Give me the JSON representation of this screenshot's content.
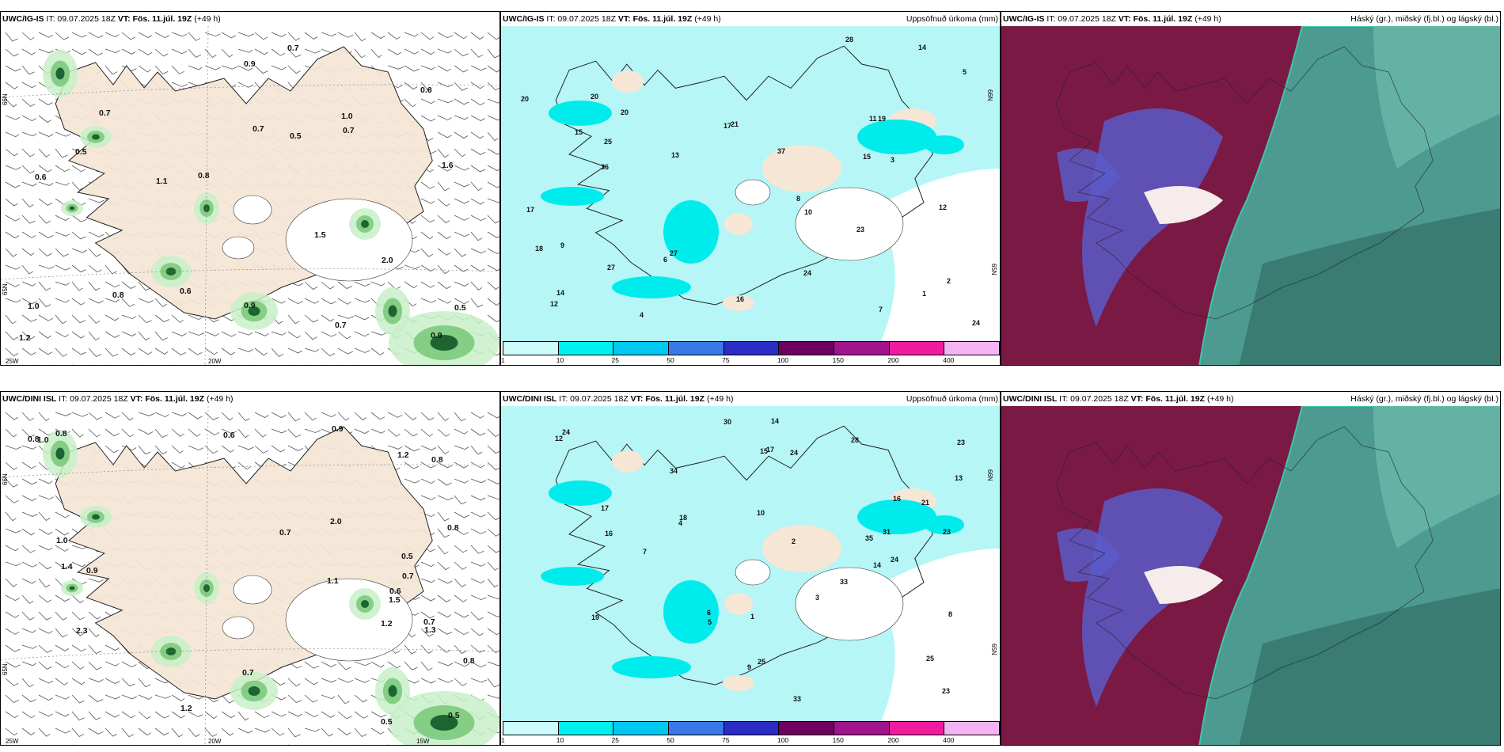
{
  "panels": [
    {
      "model": "UWC/IG-IS",
      "init": " IT: 09.07.2025 18Z ",
      "vt_label": "VT:",
      "vt": " Fös. 11.júl. 19Z",
      "lead": " (+49 h)",
      "right": "",
      "type": "wind",
      "grid": {
        "lon": [
          "25W",
          "20W"
        ],
        "lat": [
          "65N",
          "66N"
        ]
      },
      "values": [
        "0.6",
        "0.9",
        "0.7",
        "0.6",
        "0.7",
        "1.5",
        "0.5",
        "0.9",
        "0.8",
        "0.5",
        "0.7",
        "0.5",
        "0.7",
        "1.0",
        "0.9",
        "0.6",
        "0.7",
        "0.8",
        "1.1",
        "1.0",
        "1.2",
        "2.0",
        "1.6"
      ]
    },
    {
      "model": "UWC/IG-IS",
      "init": " IT: 09.07.2025 18Z ",
      "vt_label": "VT:",
      "vt": " Fös. 11.júl. 19Z",
      "lead": " (+49 h)",
      "right": "Uppsöfnuð úrkoma (mm)",
      "type": "precip",
      "grid": {
        "lon": [],
        "lat": [
          "65N",
          "66N"
        ]
      },
      "values": [
        "25",
        "18",
        "24",
        "36",
        "37",
        "27",
        "15",
        "17",
        "20",
        "12",
        "14",
        "23",
        "28",
        "27",
        "16",
        "15",
        "20",
        "24",
        "14",
        "17",
        "21",
        "19",
        "13",
        "20",
        "4",
        "5",
        "8",
        "10",
        "12",
        "11",
        "7",
        "9",
        "3",
        "6",
        "2",
        "1"
      ]
    },
    {
      "model": "UWC/IG-IS",
      "init": " IT: 09.07.2025 18Z ",
      "vt_label": "VT:",
      "vt": " Fös. 11.júl. 19Z",
      "lead": " (+49 h)",
      "right": "Háský (gr.), miðský (fj.bl.) og lágský (bl.)",
      "type": "cloud",
      "grid": {
        "lon": [],
        "lat": []
      },
      "values": []
    },
    {
      "model": "UWC/DINI ISL",
      "init": " IT: 09.07.2025 18Z ",
      "vt_label": "VT:",
      "vt": " Fös. 11.júl. 19Z",
      "lead": " (+49 h)",
      "right": "",
      "type": "wind",
      "grid": {
        "lon": [
          "25W",
          "20W",
          "15W"
        ],
        "lat": [
          "65N",
          "66N"
        ]
      },
      "values": [
        "0.8",
        "0.9",
        "0.7",
        "1.3",
        "0.9",
        "1.2",
        "0.6",
        "0.5",
        "0.8",
        "0.8",
        "0.7",
        "0.5",
        "1.0",
        "1.2",
        "0.5",
        "0.8",
        "1.4",
        "1.1",
        "0.6",
        "0.7",
        "1.0",
        "2.3",
        "0.8",
        "0.7",
        "1.2",
        "2.0",
        "1.5"
      ]
    },
    {
      "model": "UWC/DINI ISL",
      "init": " IT: 09.07.2025 18Z ",
      "vt_label": "VT:",
      "vt": " Fös. 11.júl. 19Z",
      "lead": " (+49 h)",
      "right": "Uppsöfnuð úrkoma (mm)",
      "type": "precip",
      "grid": {
        "lon": [],
        "lat": [
          "65N",
          "66N"
        ]
      },
      "values": [
        "24",
        "21",
        "23",
        "14",
        "17",
        "35",
        "33",
        "23",
        "30",
        "23",
        "12",
        "16",
        "19",
        "33",
        "25",
        "28",
        "24",
        "17",
        "16",
        "25",
        "34",
        "18",
        "31",
        "24",
        "13",
        "14",
        "15",
        "10",
        "6",
        "8",
        "5",
        "4",
        "3",
        "2",
        "7",
        "9",
        "1"
      ]
    },
    {
      "model": "UWC/DINI ISL",
      "init": " IT: 09.07.2025 18Z ",
      "vt_label": "VT:",
      "vt": " Fös. 11.júl. 19Z",
      "lead": " (+49 h)",
      "right": "Háský (gr.), miðský (fj.bl.) og lágský (bl.)",
      "type": "cloud",
      "grid": {
        "lon": [],
        "lat": []
      },
      "values": []
    }
  ],
  "legend": {
    "colors": [
      "#ccfcfc",
      "#00f0f0",
      "#00c8f0",
      "#3a78e8",
      "#2a2cc4",
      "#6e0060",
      "#a0148c",
      "#f01ca0",
      "#f4b4f4"
    ],
    "labels": [
      "1",
      "10",
      "25",
      "50",
      "75",
      "100",
      "150",
      "200",
      "400"
    ]
  },
  "colors": {
    "land": "#f5e6d6",
    "sea": "#ffffff",
    "light_green": "#c8f0c8",
    "mid_green": "#78c878",
    "dark_green": "#1e6432",
    "cyan_light": "#b6f6f6",
    "cyan": "#00ecec",
    "cloud_high": "#7a1a44",
    "cloud_mid": "#5a5ac8",
    "cloud_low": "#4d9a90"
  }
}
